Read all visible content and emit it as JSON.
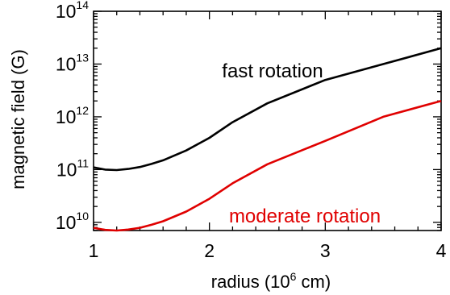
{
  "chart_data": {
    "type": "line",
    "xlabel": "radius (10",
    "xlabel_exponent": "6",
    "xlabel_suffix": " cm)",
    "ylabel": "magnetic field (G)",
    "xlim": [
      1,
      4
    ],
    "ylim": [
      7000000000,
      100000000000000
    ],
    "yscale": "log",
    "grid": false,
    "x_ticks": [
      {
        "value": 1,
        "label": "1"
      },
      {
        "value": 2,
        "label": "2"
      },
      {
        "value": 3,
        "label": "3"
      },
      {
        "value": 4,
        "label": "4"
      }
    ],
    "y_ticks": [
      {
        "value": 10000000000,
        "base": "10",
        "exp": "10"
      },
      {
        "value": 100000000000,
        "base": "10",
        "exp": "11"
      },
      {
        "value": 1000000000000,
        "base": "10",
        "exp": "12"
      },
      {
        "value": 10000000000000,
        "base": "10",
        "exp": "13"
      },
      {
        "value": 100000000000000,
        "base": "10",
        "exp": "14"
      }
    ],
    "series": [
      {
        "name": "fast rotation",
        "color": "#000000",
        "x": [
          1.0,
          1.1,
          1.2,
          1.3,
          1.4,
          1.5,
          1.6,
          1.8,
          2.0,
          2.2,
          2.5,
          3.0,
          3.5,
          4.0
        ],
        "y": [
          110000000000,
          100000000000,
          98000000000,
          103000000000,
          112000000000,
          128000000000,
          150000000000,
          230000000000,
          400000000000,
          790000000000,
          1800000000000,
          5000000000000,
          10000000000000,
          20000000000000
        ]
      },
      {
        "name": "moderate rotation",
        "color": "#e00000",
        "x": [
          1.0,
          1.1,
          1.2,
          1.3,
          1.4,
          1.5,
          1.6,
          1.8,
          2.0,
          2.2,
          2.5,
          3.0,
          3.5,
          4.0
        ],
        "y": [
          7900000000,
          7200000000,
          7000000000,
          7300000000,
          7900000000,
          9000000000,
          10500000000,
          16000000000,
          28000000000,
          55000000000,
          126000000000,
          350000000000,
          1000000000000,
          2000000000000
        ]
      }
    ]
  }
}
